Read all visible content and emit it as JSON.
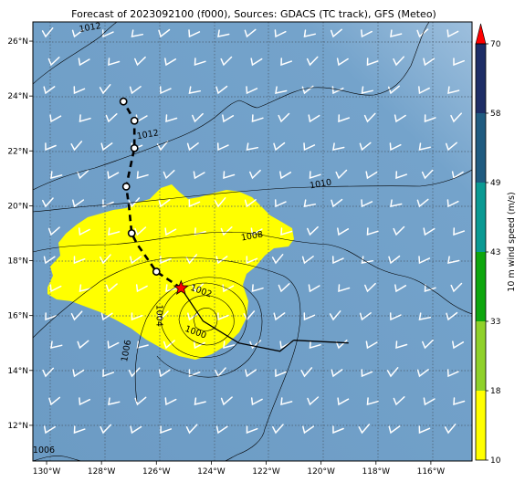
{
  "title": "Forecast of 2023092100 (f000), Sources: GDACS (TC track), GFS (Meteo)",
  "map": {
    "lon_range": [
      -130.5,
      -114.5
    ],
    "lat_range": [
      10.7,
      26.7
    ],
    "lon_ticks": [
      {
        "value": -130,
        "label": "130°W"
      },
      {
        "value": -128,
        "label": "128°W"
      },
      {
        "value": -126,
        "label": "126°W"
      },
      {
        "value": -124,
        "label": "124°W"
      },
      {
        "value": -122,
        "label": "122°W"
      },
      {
        "value": -120,
        "label": "120°W"
      },
      {
        "value": -118,
        "label": "118°W"
      },
      {
        "value": -116,
        "label": "116°W"
      }
    ],
    "lat_ticks": [
      {
        "value": 12,
        "label": "12°N"
      },
      {
        "value": 14,
        "label": "14°N"
      },
      {
        "value": 16,
        "label": "16°N"
      },
      {
        "value": 18,
        "label": "18°N"
      },
      {
        "value": 20,
        "label": "20°N"
      },
      {
        "value": 22,
        "label": "22°N"
      },
      {
        "value": 24,
        "label": "24°N"
      },
      {
        "value": 26,
        "label": "26°N"
      }
    ],
    "grid": "dotted",
    "background_color": "#72a1c9",
    "highlight_color": "#ffff00"
  },
  "pressure_labels": [
    {
      "text": "1012",
      "lon": -126.3,
      "lat": 22.5
    },
    {
      "text": "1010",
      "lon": -120.0,
      "lat": 20.7
    },
    {
      "text": "1008",
      "lon": -122.5,
      "lat": 18.8
    },
    {
      "text": "1006",
      "lon": -127.0,
      "lat": 14.7
    },
    {
      "text": "1004",
      "lon": -126.0,
      "lat": 16.0
    },
    {
      "text": "1002",
      "lon": -124.4,
      "lat": 16.8
    },
    {
      "text": "1000",
      "lon": -124.6,
      "lat": 15.3
    },
    {
      "text": "1006",
      "lon": -130.1,
      "lat": 11.0
    },
    {
      "text": "1012",
      "lon": -128.4,
      "lat": 26.4
    }
  ],
  "track_past": [
    [
      -121.0,
      15.1
    ],
    [
      -119.0,
      15.0
    ]
  ],
  "track_observed": [
    [
      -125.1,
      17.0
    ],
    [
      -124.3,
      15.8
    ],
    [
      -123.0,
      15.0
    ],
    [
      -122.0,
      14.8
    ],
    [
      -121.5,
      14.7
    ],
    [
      -121.0,
      15.1
    ]
  ],
  "track_forecast": [
    [
      -125.1,
      17.0
    ],
    [
      -126.0,
      17.6
    ],
    [
      -126.7,
      18.6
    ],
    [
      -126.9,
      19.0
    ],
    [
      -127.0,
      20.0
    ],
    [
      -127.1,
      20.7
    ],
    [
      -126.8,
      22.1
    ],
    [
      -126.8,
      23.1
    ],
    [
      -127.2,
      23.8
    ]
  ],
  "forecast_positions": [
    [
      -126.0,
      17.6
    ],
    [
      -126.9,
      19.0
    ],
    [
      -127.1,
      20.7
    ],
    [
      -126.8,
      22.1
    ],
    [
      -126.8,
      23.1
    ],
    [
      -127.2,
      23.8
    ]
  ],
  "current_position": {
    "lon": -125.1,
    "lat": 17.0
  },
  "colorbar": {
    "label": "10 m wind speed (m/s)",
    "ticks": [
      "10",
      "18",
      "33",
      "43",
      "49",
      "58",
      "70"
    ],
    "colors": [
      "#ffff00",
      "#8fd12a",
      "#0ea60e",
      "#0a9a93",
      "#1f5b80",
      "#1d2d66"
    ],
    "extend_color": "#ff0000"
  }
}
